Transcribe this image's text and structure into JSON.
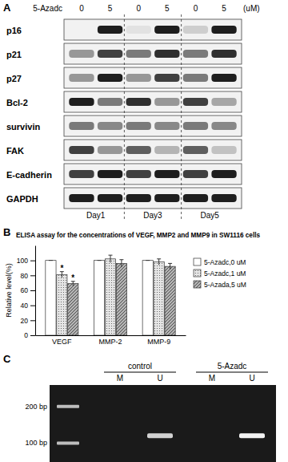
{
  "panel_labels": [
    "A",
    "B",
    "C"
  ],
  "blot": {
    "treatment": "5-Azadc",
    "doses": [
      0,
      5,
      0,
      5,
      0,
      5
    ],
    "unit": "(uM)",
    "days": [
      "Day1",
      "Day3",
      "Day5"
    ],
    "rows": [
      {
        "label": "p16",
        "intensity": [
          0.1,
          0.9,
          0.2,
          0.9,
          0.3,
          0.9
        ]
      },
      {
        "label": "p21",
        "intensity": [
          0.5,
          0.8,
          0.6,
          0.85,
          0.6,
          0.85
        ]
      },
      {
        "label": "p27",
        "intensity": [
          0.5,
          0.9,
          0.5,
          0.8,
          0.6,
          0.9
        ]
      },
      {
        "label": "Bcl-2",
        "intensity": [
          0.9,
          0.6,
          0.85,
          0.5,
          0.8,
          0.45
        ]
      },
      {
        "label": "survivin",
        "intensity": [
          0.6,
          0.55,
          0.6,
          0.55,
          0.6,
          0.55
        ]
      },
      {
        "label": "FAK",
        "intensity": [
          0.8,
          0.5,
          0.7,
          0.4,
          0.7,
          0.35
        ]
      },
      {
        "label": "E-cadherin",
        "intensity": [
          0.8,
          0.9,
          0.8,
          0.9,
          0.8,
          0.9
        ]
      },
      {
        "label": "GAPDH",
        "intensity": [
          0.9,
          0.9,
          0.9,
          0.9,
          0.9,
          0.9
        ]
      }
    ]
  },
  "chart_data": {
    "type": "bar",
    "title": "ELISA assay for the concentrations of VEGF, MMP2 and MMP9 in SW1116 cells",
    "y_label": "Relative level(%)",
    "categories": [
      "VEGF",
      "MMP-2",
      "MMP-9"
    ],
    "series": [
      {
        "name": "5-Azadc,0 uM",
        "color": "#ffffff",
        "values": [
          100,
          100,
          100
        ],
        "errors": [
          0,
          0,
          0
        ]
      },
      {
        "name": "5-Azadc,1 uM",
        "color": "#e6e6e6",
        "values": [
          81,
          102,
          98
        ],
        "errors": [
          4,
          5,
          4
        ],
        "annotations": [
          "*",
          null,
          null
        ]
      },
      {
        "name": "5-Azada,5 uM",
        "color": "#b3b3b3",
        "values": [
          69,
          96,
          92
        ],
        "errors": [
          3,
          5,
          4
        ],
        "annotations": [
          "*",
          null,
          null
        ]
      }
    ],
    "ylim": [
      0,
      120
    ],
    "yticks": [
      0,
      20,
      40,
      60,
      80,
      100
    ],
    "legend": "right",
    "grid": false
  },
  "gel": {
    "markers": [
      {
        "value": 200,
        "label": "200 bp"
      },
      {
        "value": 100,
        "label": "100 bp"
      }
    ],
    "groups": [
      {
        "label": "control",
        "lanes": [
          "M",
          "U"
        ],
        "intensity": [
          0,
          0.8
        ]
      },
      {
        "label": "5-Azadc",
        "lanes": [
          "M",
          "U"
        ],
        "intensity": [
          0,
          0.95
        ]
      }
    ],
    "band_bp": 115
  }
}
